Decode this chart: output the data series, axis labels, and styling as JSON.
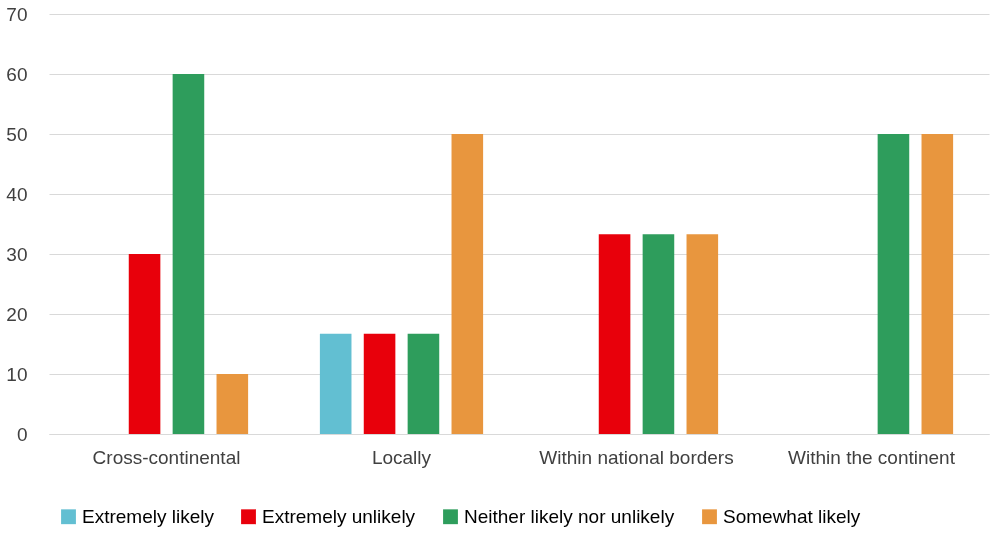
{
  "chart_data": {
    "type": "bar",
    "categories": [
      "Cross-continental",
      "Locally",
      "Within national borders",
      "Within the continent"
    ],
    "series": [
      {
        "name": "Extremely likely",
        "color": "#62bfd2",
        "values": [
          null,
          16.7,
          null,
          null
        ]
      },
      {
        "name": "Extremely unlikely",
        "color": "#e8000b",
        "values": [
          30,
          16.7,
          33.3,
          null
        ]
      },
      {
        "name": "Neither likely nor unlikely",
        "color": "#2e9d5c",
        "values": [
          60,
          16.7,
          33.3,
          50
        ]
      },
      {
        "name": "Somewhat likely",
        "color": "#e8963e",
        "values": [
          10,
          50,
          33.3,
          50
        ]
      }
    ],
    "ylim": [
      0,
      70
    ],
    "yticks": [
      0,
      10,
      20,
      30,
      40,
      50,
      60,
      70
    ],
    "grid": "y",
    "legend": "bottom"
  }
}
